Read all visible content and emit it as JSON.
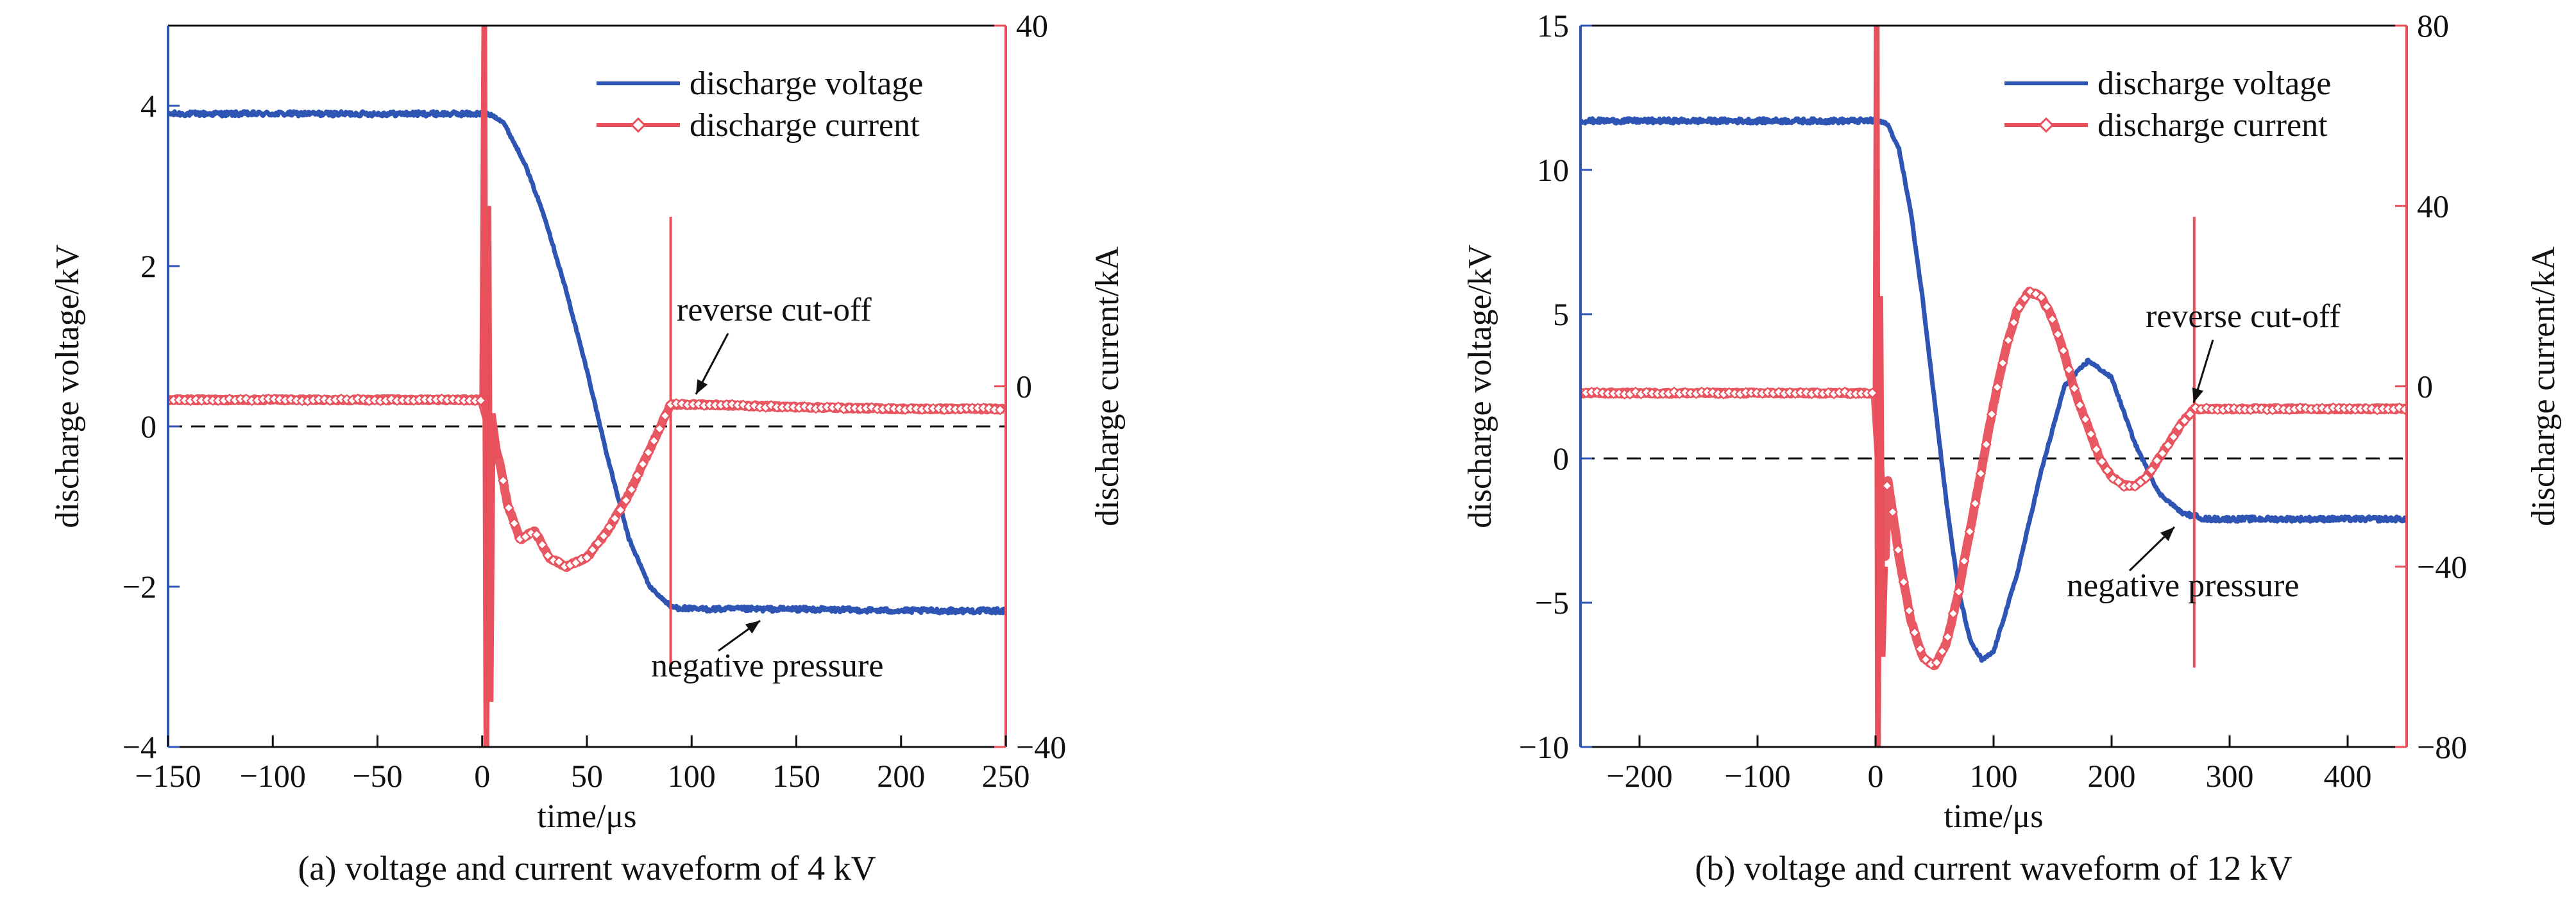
{
  "chart_data": [
    {
      "type": "line",
      "caption": "(a) voltage and current waveform of 4 kV",
      "xlabel": "time/μs",
      "ylabel_left": "discharge voltage/kV",
      "ylabel_right": "discharge current/kA",
      "xlim": [
        -150,
        250
      ],
      "ylim_left": [
        -4,
        5
      ],
      "ylim_right": [
        -40,
        40
      ],
      "xticks": [
        -150,
        -100,
        -50,
        0,
        50,
        100,
        150,
        200,
        250
      ],
      "yticks_left": [
        -4,
        -2,
        0,
        2,
        4
      ],
      "yticks_right": [
        -40,
        0,
        40
      ],
      "reference_line_y": 0,
      "legend_position": "top-right",
      "series": [
        {
          "name": "discharge voltage",
          "axis": "left",
          "color": "#2f55b4",
          "x": [
            -150,
            0,
            5,
            10,
            20,
            30,
            40,
            50,
            60,
            70,
            80,
            90,
            100,
            150,
            200,
            250
          ],
          "y": [
            3.9,
            3.9,
            3.88,
            3.8,
            3.3,
            2.6,
            1.7,
            0.7,
            -0.4,
            -1.4,
            -2.0,
            -2.25,
            -2.28,
            -2.28,
            -2.3,
            -2.3
          ]
        },
        {
          "name": "discharge current",
          "axis": "right",
          "color": "#e8505b",
          "x": [
            -150,
            0,
            1,
            2,
            3,
            4,
            5,
            8,
            12,
            18,
            25,
            32,
            40,
            50,
            60,
            70,
            80,
            90,
            100,
            150,
            200,
            250
          ],
          "y": [
            -1.5,
            -1.5,
            40,
            -40,
            20,
            -35,
            -3,
            -8,
            -13,
            -17,
            -16,
            -19,
            -20,
            -19,
            -16,
            -12,
            -7,
            -2,
            -2,
            -2.3,
            -2.5,
            -2.5
          ]
        }
      ],
      "annotations": [
        {
          "text": "reverse cut-off",
          "x": 90,
          "y": -1.8,
          "axis": "right"
        },
        {
          "text": "negative pressure",
          "x": 100,
          "y": -2.28,
          "axis": "left"
        }
      ]
    },
    {
      "type": "line",
      "caption": "(b) voltage and current waveform of 12 kV",
      "xlabel": "time/μs",
      "ylabel_left": "discharge voltage/kV",
      "ylabel_right": "discharge current/kA",
      "xlim": [
        -250,
        450
      ],
      "ylim_left": [
        -10,
        15
      ],
      "ylim_right": [
        -80,
        80
      ],
      "xticks": [
        -200,
        -100,
        0,
        100,
        200,
        300,
        400
      ],
      "yticks_left": [
        -10,
        -5,
        0,
        5,
        10,
        15
      ],
      "yticks_right": [
        -80,
        -40,
        0,
        40,
        80
      ],
      "reference_line_y": 0,
      "legend_position": "top-right",
      "series": [
        {
          "name": "discharge voltage",
          "axis": "left",
          "color": "#2f55b4",
          "x": [
            -250,
            0,
            10,
            20,
            30,
            40,
            50,
            60,
            70,
            80,
            90,
            100,
            120,
            140,
            160,
            180,
            200,
            220,
            240,
            260,
            280,
            300,
            350,
            450
          ],
          "y": [
            11.7,
            11.7,
            11.6,
            10.7,
            8.5,
            5.5,
            2.0,
            -1.5,
            -4.5,
            -6.3,
            -7.0,
            -6.7,
            -4.0,
            -0.5,
            2.5,
            3.4,
            2.8,
            0.5,
            -1.2,
            -1.9,
            -2.1,
            -2.1,
            -2.1,
            -2.1
          ]
        },
        {
          "name": "discharge current",
          "axis": "right",
          "color": "#e8505b",
          "x": [
            -250,
            0,
            1,
            2,
            4,
            6,
            10,
            20,
            30,
            40,
            50,
            60,
            70,
            80,
            90,
            100,
            110,
            120,
            130,
            140,
            150,
            160,
            170,
            180,
            190,
            200,
            210,
            220,
            230,
            240,
            250,
            260,
            270,
            300,
            350,
            450
          ],
          "y": [
            -1.5,
            -1.5,
            80,
            -80,
            20,
            -60,
            -20,
            -38,
            -52,
            -60,
            -62,
            -57,
            -46,
            -32,
            -18,
            -4,
            8,
            17,
            21,
            20,
            15,
            7,
            -2,
            -9,
            -16,
            -20,
            -22,
            -22,
            -20,
            -16,
            -12,
            -8,
            -5,
            -5,
            -5,
            -5
          ]
        }
      ],
      "annotations": [
        {
          "text": "reverse cut-off",
          "x": 270,
          "y": -2,
          "axis": "right"
        },
        {
          "text": "negative pressure",
          "x": 300,
          "y": -2.1,
          "axis": "left"
        }
      ]
    }
  ]
}
